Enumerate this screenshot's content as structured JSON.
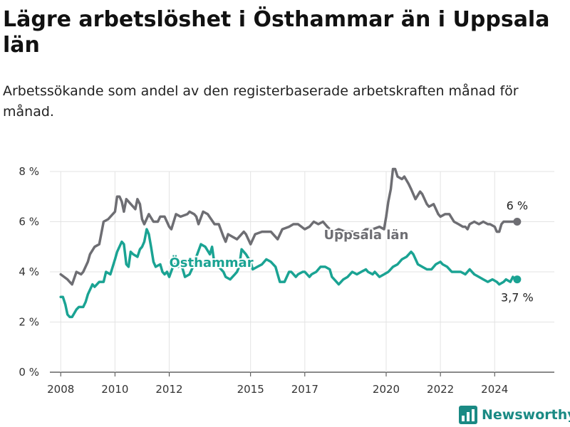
{
  "header": {
    "title": "Lägre arbetslöshet i Östhammar än i Uppsala län",
    "subtitle": "Arbetssökande som andel av den registerbaserade arbetskraften månad för månad."
  },
  "brand": {
    "name": "Newsworthy",
    "icon": "bar-chart-logo-icon",
    "color": "#1a8a84"
  },
  "chart_data": {
    "type": "line",
    "title": "Lägre arbetslöshet i Östhammar än i Uppsala län",
    "subtitle": "Arbetssökande som andel av den registerbaserade arbetskraften månad för månad.",
    "xlabel": "",
    "ylabel": "",
    "ylim": [
      0,
      8
    ],
    "xlim": [
      2007.6,
      2026.2
    ],
    "yticks": [
      {
        "value": 0,
        "label": "0 %"
      },
      {
        "value": 2,
        "label": "2 %"
      },
      {
        "value": 4,
        "label": "4 %"
      },
      {
        "value": 6,
        "label": "6 %"
      },
      {
        "value": 8,
        "label": "8 %"
      }
    ],
    "xticks": [
      {
        "value": 2008,
        "label": "2008"
      },
      {
        "value": 2010,
        "label": "2010"
      },
      {
        "value": 2012,
        "label": "2012"
      },
      {
        "value": 2015,
        "label": "2015"
      },
      {
        "value": 2017,
        "label": "2017"
      },
      {
        "value": 2020,
        "label": "2020"
      },
      {
        "value": 2022,
        "label": "2022"
      },
      {
        "value": 2024,
        "label": "2024"
      }
    ],
    "grid": true,
    "series": [
      {
        "name": "Uppsala län",
        "color": "#6e6e73",
        "end_label": "6 %",
        "points": [
          [
            2008.0,
            3.9
          ],
          [
            2008.25,
            3.7
          ],
          [
            2008.33,
            3.6
          ],
          [
            2008.42,
            3.5
          ],
          [
            2008.58,
            4.0
          ],
          [
            2008.75,
            3.9
          ],
          [
            2008.83,
            4.0
          ],
          [
            2009.0,
            4.4
          ],
          [
            2009.08,
            4.7
          ],
          [
            2009.25,
            5.0
          ],
          [
            2009.42,
            5.1
          ],
          [
            2009.58,
            6.0
          ],
          [
            2009.75,
            6.1
          ],
          [
            2010.0,
            6.4
          ],
          [
            2010.08,
            7.0
          ],
          [
            2010.17,
            7.0
          ],
          [
            2010.25,
            6.8
          ],
          [
            2010.33,
            6.4
          ],
          [
            2010.42,
            6.9
          ],
          [
            2010.67,
            6.6
          ],
          [
            2010.75,
            6.5
          ],
          [
            2010.83,
            6.9
          ],
          [
            2010.92,
            6.7
          ],
          [
            2011.0,
            6.1
          ],
          [
            2011.08,
            5.9
          ],
          [
            2011.25,
            6.3
          ],
          [
            2011.42,
            6.0
          ],
          [
            2011.58,
            6.0
          ],
          [
            2011.67,
            6.2
          ],
          [
            2011.83,
            6.2
          ],
          [
            2012.0,
            5.8
          ],
          [
            2012.08,
            5.7
          ],
          [
            2012.25,
            6.3
          ],
          [
            2012.42,
            6.2
          ],
          [
            2012.67,
            6.3
          ],
          [
            2012.75,
            6.4
          ],
          [
            2012.92,
            6.3
          ],
          [
            2013.0,
            6.2
          ],
          [
            2013.08,
            5.9
          ],
          [
            2013.25,
            6.4
          ],
          [
            2013.42,
            6.3
          ],
          [
            2013.67,
            5.9
          ],
          [
            2013.83,
            5.9
          ],
          [
            2014.0,
            5.4
          ],
          [
            2014.08,
            5.2
          ],
          [
            2014.17,
            5.5
          ],
          [
            2014.33,
            5.4
          ],
          [
            2014.5,
            5.3
          ],
          [
            2014.75,
            5.6
          ],
          [
            2014.83,
            5.5
          ],
          [
            2015.0,
            5.1
          ],
          [
            2015.17,
            5.5
          ],
          [
            2015.42,
            5.6
          ],
          [
            2015.75,
            5.6
          ],
          [
            2016.0,
            5.3
          ],
          [
            2016.17,
            5.7
          ],
          [
            2016.42,
            5.8
          ],
          [
            2016.58,
            5.9
          ],
          [
            2016.75,
            5.9
          ],
          [
            2017.0,
            5.7
          ],
          [
            2017.17,
            5.8
          ],
          [
            2017.33,
            6.0
          ],
          [
            2017.5,
            5.9
          ],
          [
            2017.67,
            6.0
          ],
          [
            2017.83,
            5.8
          ],
          [
            2017.92,
            5.7
          ],
          [
            2018.08,
            5.6
          ],
          [
            2018.25,
            5.7
          ],
          [
            2018.5,
            5.6
          ],
          [
            2018.75,
            5.6
          ],
          [
            2019.0,
            5.5
          ],
          [
            2019.25,
            5.7
          ],
          [
            2019.5,
            5.7
          ],
          [
            2019.75,
            5.8
          ],
          [
            2019.92,
            5.7
          ],
          [
            2020.0,
            6.2
          ],
          [
            2020.08,
            6.8
          ],
          [
            2020.17,
            7.3
          ],
          [
            2020.25,
            8.1
          ],
          [
            2020.33,
            8.1
          ],
          [
            2020.42,
            7.8
          ],
          [
            2020.58,
            7.7
          ],
          [
            2020.67,
            7.8
          ],
          [
            2020.83,
            7.5
          ],
          [
            2020.92,
            7.3
          ],
          [
            2021.08,
            6.9
          ],
          [
            2021.25,
            7.2
          ],
          [
            2021.33,
            7.1
          ],
          [
            2021.5,
            6.7
          ],
          [
            2021.58,
            6.6
          ],
          [
            2021.75,
            6.7
          ],
          [
            2021.92,
            6.3
          ],
          [
            2022.0,
            6.2
          ],
          [
            2022.17,
            6.3
          ],
          [
            2022.33,
            6.3
          ],
          [
            2022.5,
            6.0
          ],
          [
            2022.67,
            5.9
          ],
          [
            2022.83,
            5.8
          ],
          [
            2022.92,
            5.8
          ],
          [
            2023.0,
            5.7
          ],
          [
            2023.08,
            5.9
          ],
          [
            2023.25,
            6.0
          ],
          [
            2023.42,
            5.9
          ],
          [
            2023.58,
            6.0
          ],
          [
            2023.75,
            5.9
          ],
          [
            2023.83,
            5.9
          ],
          [
            2024.0,
            5.8
          ],
          [
            2024.08,
            5.6
          ],
          [
            2024.17,
            5.6
          ],
          [
            2024.25,
            5.9
          ],
          [
            2024.33,
            6.0
          ],
          [
            2024.5,
            6.0
          ],
          [
            2024.58,
            6.0
          ],
          [
            2024.75,
            6.0
          ],
          [
            2024.83,
            6.0
          ]
        ]
      },
      {
        "name": "Östhammar",
        "color": "#1aa393",
        "end_label": "3,7 %",
        "points": [
          [
            2008.0,
            3.0
          ],
          [
            2008.08,
            3.0
          ],
          [
            2008.17,
            2.7
          ],
          [
            2008.25,
            2.3
          ],
          [
            2008.33,
            2.2
          ],
          [
            2008.42,
            2.2
          ],
          [
            2008.58,
            2.5
          ],
          [
            2008.67,
            2.6
          ],
          [
            2008.83,
            2.6
          ],
          [
            2008.92,
            2.8
          ],
          [
            2009.0,
            3.1
          ],
          [
            2009.17,
            3.5
          ],
          [
            2009.25,
            3.4
          ],
          [
            2009.42,
            3.6
          ],
          [
            2009.58,
            3.6
          ],
          [
            2009.67,
            4.0
          ],
          [
            2009.83,
            3.9
          ],
          [
            2010.0,
            4.5
          ],
          [
            2010.08,
            4.8
          ],
          [
            2010.25,
            5.2
          ],
          [
            2010.33,
            5.1
          ],
          [
            2010.42,
            4.3
          ],
          [
            2010.5,
            4.2
          ],
          [
            2010.58,
            4.8
          ],
          [
            2010.67,
            4.7
          ],
          [
            2010.83,
            4.6
          ],
          [
            2010.92,
            4.9
          ],
          [
            2011.0,
            5.0
          ],
          [
            2011.08,
            5.2
          ],
          [
            2011.17,
            5.7
          ],
          [
            2011.25,
            5.5
          ],
          [
            2011.33,
            5.0
          ],
          [
            2011.42,
            4.4
          ],
          [
            2011.5,
            4.2
          ],
          [
            2011.67,
            4.3
          ],
          [
            2011.75,
            4.0
          ],
          [
            2011.83,
            3.9
          ],
          [
            2011.92,
            4.0
          ],
          [
            2012.0,
            3.8
          ],
          [
            2012.17,
            4.3
          ],
          [
            2012.25,
            4.3
          ],
          [
            2012.33,
            4.2
          ],
          [
            2012.42,
            4.4
          ],
          [
            2012.58,
            3.8
          ],
          [
            2012.75,
            3.9
          ],
          [
            2012.92,
            4.3
          ],
          [
            2013.0,
            4.6
          ],
          [
            2013.17,
            5.1
          ],
          [
            2013.33,
            5.0
          ],
          [
            2013.5,
            4.7
          ],
          [
            2013.58,
            5.0
          ],
          [
            2013.67,
            4.3
          ],
          [
            2013.83,
            4.2
          ],
          [
            2014.0,
            4.0
          ],
          [
            2014.08,
            3.8
          ],
          [
            2014.25,
            3.7
          ],
          [
            2014.42,
            3.9
          ],
          [
            2014.5,
            4.0
          ],
          [
            2014.58,
            4.2
          ],
          [
            2014.67,
            4.9
          ],
          [
            2014.83,
            4.7
          ],
          [
            2015.0,
            4.4
          ],
          [
            2015.08,
            4.1
          ],
          [
            2015.25,
            4.2
          ],
          [
            2015.42,
            4.3
          ],
          [
            2015.58,
            4.5
          ],
          [
            2015.75,
            4.4
          ],
          [
            2015.92,
            4.2
          ],
          [
            2016.0,
            3.9
          ],
          [
            2016.08,
            3.6
          ],
          [
            2016.25,
            3.6
          ],
          [
            2016.42,
            4.0
          ],
          [
            2016.5,
            4.0
          ],
          [
            2016.67,
            3.8
          ],
          [
            2016.75,
            3.9
          ],
          [
            2016.92,
            4.0
          ],
          [
            2017.0,
            4.0
          ],
          [
            2017.17,
            3.8
          ],
          [
            2017.25,
            3.9
          ],
          [
            2017.42,
            4.0
          ],
          [
            2017.58,
            4.2
          ],
          [
            2017.75,
            4.2
          ],
          [
            2017.92,
            4.1
          ],
          [
            2018.0,
            3.8
          ],
          [
            2018.17,
            3.6
          ],
          [
            2018.25,
            3.5
          ],
          [
            2018.42,
            3.7
          ],
          [
            2018.58,
            3.8
          ],
          [
            2018.75,
            4.0
          ],
          [
            2018.92,
            3.9
          ],
          [
            2019.08,
            4.0
          ],
          [
            2019.25,
            4.1
          ],
          [
            2019.33,
            4.0
          ],
          [
            2019.5,
            3.9
          ],
          [
            2019.58,
            4.0
          ],
          [
            2019.75,
            3.8
          ],
          [
            2019.92,
            3.9
          ],
          [
            2020.08,
            4.0
          ],
          [
            2020.25,
            4.2
          ],
          [
            2020.42,
            4.3
          ],
          [
            2020.58,
            4.5
          ],
          [
            2020.75,
            4.6
          ],
          [
            2020.92,
            4.8
          ],
          [
            2021.0,
            4.7
          ],
          [
            2021.17,
            4.3
          ],
          [
            2021.33,
            4.2
          ],
          [
            2021.5,
            4.1
          ],
          [
            2021.67,
            4.1
          ],
          [
            2021.83,
            4.3
          ],
          [
            2022.0,
            4.4
          ],
          [
            2022.08,
            4.3
          ],
          [
            2022.25,
            4.2
          ],
          [
            2022.42,
            4.0
          ],
          [
            2022.58,
            4.0
          ],
          [
            2022.75,
            4.0
          ],
          [
            2022.92,
            3.9
          ],
          [
            2023.08,
            4.1
          ],
          [
            2023.25,
            3.9
          ],
          [
            2023.42,
            3.8
          ],
          [
            2023.58,
            3.7
          ],
          [
            2023.75,
            3.6
          ],
          [
            2023.92,
            3.7
          ],
          [
            2024.08,
            3.6
          ],
          [
            2024.17,
            3.5
          ],
          [
            2024.33,
            3.6
          ],
          [
            2024.42,
            3.7
          ],
          [
            2024.58,
            3.6
          ],
          [
            2024.67,
            3.8
          ],
          [
            2024.75,
            3.7
          ],
          [
            2024.83,
            3.7
          ]
        ]
      }
    ]
  }
}
